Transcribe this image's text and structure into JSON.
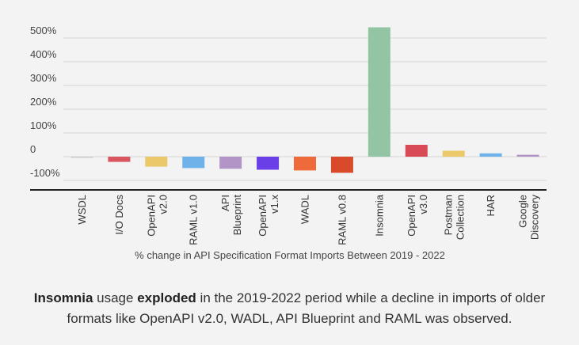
{
  "chart_data": {
    "type": "bar",
    "title": "",
    "xlabel": "% change in API Specification Format Imports Between 2019 - 2022",
    "ylabel": "",
    "ylim": [
      -130,
      560
    ],
    "yticks": [
      {
        "value": 500,
        "label": "500%"
      },
      {
        "value": 400,
        "label": "400%"
      },
      {
        "value": 300,
        "label": "300%"
      },
      {
        "value": 200,
        "label": "200%"
      },
      {
        "value": 100,
        "label": "100%"
      },
      {
        "value": 0,
        "label": "0"
      },
      {
        "value": -100,
        "label": "-100%"
      }
    ],
    "categories": [
      [
        "WSDL"
      ],
      [
        "I/O Docs"
      ],
      [
        "OpenAPI",
        "v2.0"
      ],
      [
        "RAML v1.0"
      ],
      [
        "API",
        "Blueprint"
      ],
      [
        "OpenAPI",
        "v1.x"
      ],
      [
        "WADL"
      ],
      [
        "RAML v0.8"
      ],
      [
        "Insomnia"
      ],
      [
        "OpenAPI",
        "v3.0"
      ],
      [
        "Postman",
        "Collection"
      ],
      [
        "HAR"
      ],
      [
        "Google",
        "Discovery"
      ]
    ],
    "values": [
      -1,
      -22,
      -42,
      -48,
      -51,
      -55,
      -58,
      -68,
      545,
      50,
      25,
      14,
      8
    ],
    "colors": [
      "#cccccc",
      "#d95560",
      "#ebc96a",
      "#6fb2ea",
      "#b294c7",
      "#6a3fe8",
      "#ef6a3a",
      "#d94a2a",
      "#93c4a4",
      "#d94a57",
      "#ebc96a",
      "#6fb2ea",
      "#b294c7"
    ]
  },
  "caption": {
    "line1": {
      "strong1": "Insomnia",
      "text1": " usage ",
      "strong2": "exploded",
      "text2": " in the 2019-2022 period while a decline in imports of older"
    },
    "line2": "formats like OpenAPI v2.0, WADL, API Blueprint and RAML was observed."
  }
}
